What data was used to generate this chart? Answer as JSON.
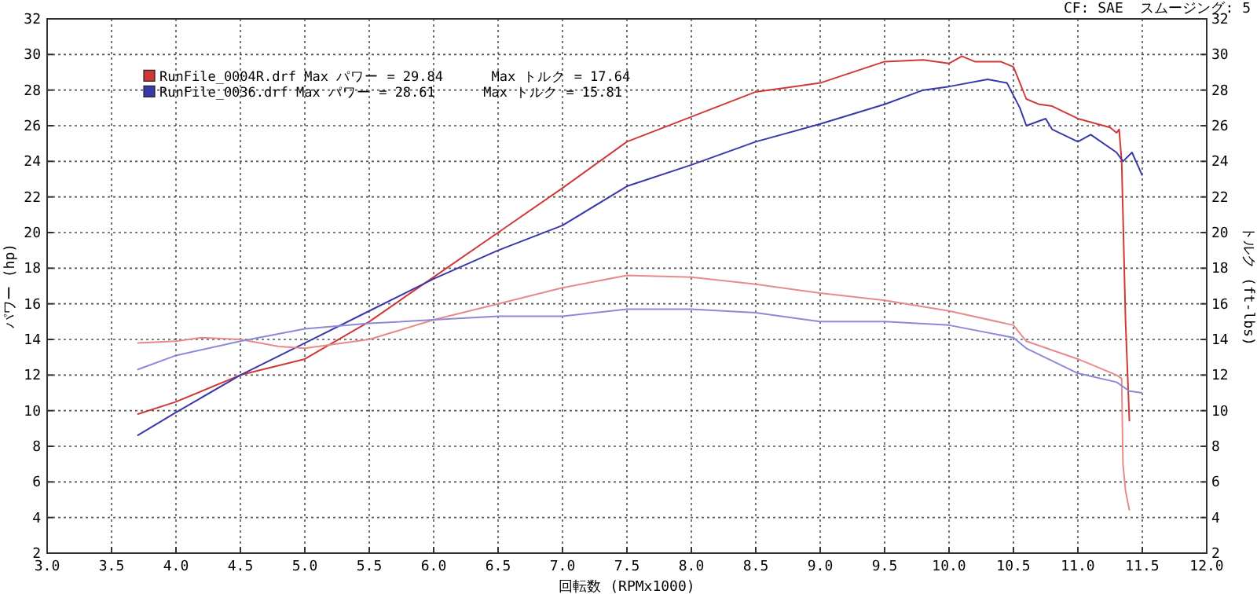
{
  "chart_data": {
    "type": "line",
    "xlabel": "回転数 (RPMx1000)",
    "ylabel": "パワー (hp)",
    "y2label": "トルク (ft-lbs)",
    "annotations": [
      "CF: SAE  スムージング: 5"
    ],
    "xlim": [
      3,
      12
    ],
    "xticks": [
      {
        "value": 3,
        "label": "3.0"
      },
      3.5,
      {
        "value": 4,
        "label": "4.0"
      },
      4.5,
      {
        "value": 5,
        "label": "5.0"
      },
      5.5,
      {
        "value": 6,
        "label": "6.0"
      },
      6.5,
      {
        "value": 7,
        "label": "7.0"
      },
      7.5,
      {
        "value": 8,
        "label": "8.0"
      },
      8.5,
      {
        "value": 9,
        "label": "9.0"
      },
      9.5,
      {
        "value": 10,
        "label": "10.0"
      },
      10.5,
      {
        "value": 11,
        "label": "11.0"
      },
      11.5,
      {
        "value": 12,
        "label": "12.0"
      }
    ],
    "ylim": [
      2,
      32
    ],
    "yticks": [
      2,
      4,
      6,
      8,
      10,
      12,
      14,
      16,
      18,
      20,
      22,
      24,
      26,
      28,
      30,
      32
    ],
    "y2lim": [
      2,
      32
    ],
    "y2ticks": [
      2,
      4,
      6,
      8,
      10,
      12,
      14,
      16,
      18,
      20,
      22,
      24,
      26,
      28,
      30,
      32
    ],
    "grid": true,
    "legend": "top left",
    "series": [
      {
        "name": "RunFile_0004R.drf Max パワー = 29.84      Max トルク = 17.64",
        "color": "#d03838",
        "x": [
          3.7,
          4.0,
          4.5,
          5.0,
          5.5,
          6.0,
          6.5,
          7.0,
          7.5,
          8.0,
          8.5,
          9.0,
          9.5,
          9.8,
          10.0,
          10.1,
          10.2,
          10.4,
          10.5,
          10.6,
          10.7,
          10.8,
          11.0,
          11.1,
          11.25,
          11.3,
          11.32,
          11.34,
          11.37,
          11.4
        ],
        "values": [
          9.8,
          10.5,
          12.0,
          12.9,
          15.0,
          17.5,
          20.0,
          22.5,
          25.1,
          26.5,
          27.9,
          28.4,
          29.6,
          29.7,
          29.5,
          29.9,
          29.6,
          29.6,
          29.3,
          27.5,
          27.2,
          27.1,
          26.4,
          26.2,
          25.9,
          25.6,
          25.8,
          24.0,
          15.0,
          9.4
        ]
      },
      {
        "name": "RunFile_0036.drf Max パワー = 28.61      Max トルク = 15.81",
        "color": "#3838a8",
        "x": [
          3.7,
          4.0,
          4.5,
          5.0,
          5.5,
          6.0,
          6.5,
          7.0,
          7.5,
          8.0,
          8.5,
          9.0,
          9.5,
          9.8,
          10.0,
          10.3,
          10.45,
          10.55,
          10.6,
          10.75,
          10.8,
          11.0,
          11.1,
          11.3,
          11.35,
          11.42,
          11.5
        ],
        "values": [
          8.6,
          9.9,
          12.0,
          13.8,
          15.6,
          17.4,
          19.0,
          20.4,
          22.6,
          23.8,
          25.1,
          26.1,
          27.2,
          28.0,
          28.2,
          28.6,
          28.4,
          27.0,
          26.0,
          26.4,
          25.8,
          25.1,
          25.5,
          24.5,
          24.0,
          24.5,
          23.2
        ]
      },
      {
        "color": "#e88a8a",
        "x": [
          3.7,
          4.0,
          4.2,
          4.5,
          4.8,
          5.0,
          5.5,
          6.0,
          6.5,
          7.0,
          7.5,
          8.0,
          8.5,
          9.0,
          9.5,
          10.0,
          10.5,
          10.6,
          11.0,
          11.3,
          11.34,
          11.35,
          11.37,
          11.4
        ],
        "values": [
          13.8,
          13.9,
          14.1,
          14.0,
          13.6,
          13.5,
          14.0,
          15.1,
          16.0,
          16.9,
          17.6,
          17.5,
          17.1,
          16.6,
          16.2,
          15.6,
          14.8,
          13.9,
          12.9,
          12.0,
          11.8,
          7.0,
          5.5,
          4.4
        ]
      },
      {
        "color": "#8a8ad8",
        "x": [
          3.7,
          4.0,
          4.5,
          5.0,
          5.5,
          6.0,
          6.5,
          7.0,
          7.5,
          8.0,
          8.5,
          9.0,
          9.5,
          10.0,
          10.5,
          10.6,
          11.0,
          11.3,
          11.4,
          11.5
        ],
        "values": [
          12.3,
          13.1,
          13.9,
          14.6,
          14.9,
          15.1,
          15.3,
          15.3,
          15.7,
          15.7,
          15.5,
          15.0,
          15.0,
          14.8,
          14.1,
          13.5,
          12.1,
          11.6,
          11.1,
          11.0
        ]
      }
    ]
  }
}
